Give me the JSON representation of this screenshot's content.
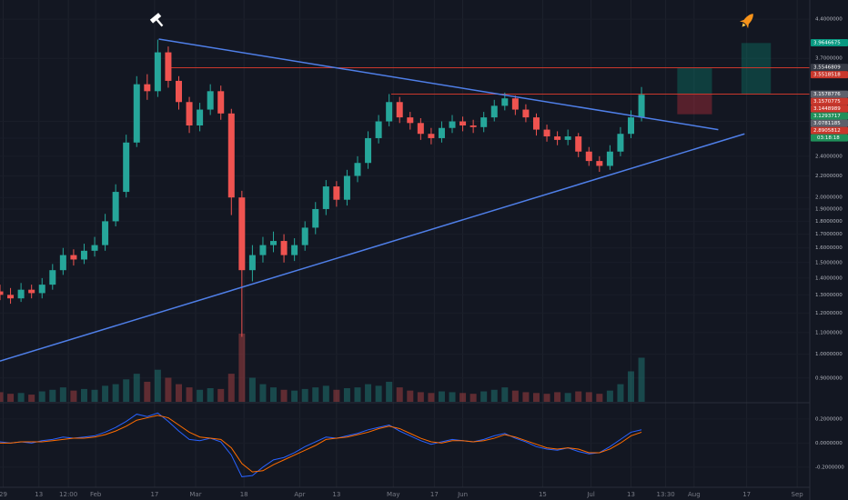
{
  "chart_data": {
    "type": "candlestick",
    "log_scale": true,
    "grid": true,
    "up_color": "#26a69a",
    "down_color": "#ef5350",
    "xlim": [
      0,
      77
    ],
    "ylim": [
      0.81,
      4.79
    ],
    "xticks": [
      {
        "value": 0.3,
        "label": "29"
      },
      {
        "value": 3.7,
        "label": "13"
      },
      {
        "value": 6.5,
        "label": "12:00"
      },
      {
        "value": 9.1,
        "label": "Feb"
      },
      {
        "value": 14.7,
        "label": "17"
      },
      {
        "value": 18.6,
        "label": "Mar"
      },
      {
        "value": 23.2,
        "label": "18"
      },
      {
        "value": 28.5,
        "label": "Apr"
      },
      {
        "value": 32,
        "label": "13"
      },
      {
        "value": 37.4,
        "label": "May"
      },
      {
        "value": 41.3,
        "label": "17"
      },
      {
        "value": 44,
        "label": "Jun"
      },
      {
        "value": 51.6,
        "label": "15"
      },
      {
        "value": 56.2,
        "label": "Jul"
      },
      {
        "value": 60,
        "label": "13"
      },
      {
        "value": 63.3,
        "label": "13:30"
      },
      {
        "value": 66,
        "label": "Aug"
      },
      {
        "value": 71,
        "label": "17"
      },
      {
        "value": 75.8,
        "label": "Sep"
      }
    ],
    "yticks": [
      {
        "value": 4.4,
        "label": "4.4000000"
      },
      {
        "value": 3.7,
        "label": "3.7000000"
      },
      {
        "value": 2.8,
        "label": "2.8000000"
      },
      {
        "value": 2.6,
        "label": "2.6000000"
      },
      {
        "value": 2.4,
        "label": "2.4000000"
      },
      {
        "value": 2.2,
        "label": "2.2000000"
      },
      {
        "value": 2.0,
        "label": "2.0000000"
      },
      {
        "value": 1.9,
        "label": "1.9000000"
      },
      {
        "value": 1.8,
        "label": "1.8000000"
      },
      {
        "value": 1.7,
        "label": "1.7000000"
      },
      {
        "value": 1.6,
        "label": "1.6000000"
      },
      {
        "value": 1.5,
        "label": "1.5000000"
      },
      {
        "value": 1.4,
        "label": "1.4000000"
      },
      {
        "value": 1.3,
        "label": "1.3000000"
      },
      {
        "value": 1.2,
        "label": "1.2000000"
      },
      {
        "value": 1.1,
        "label": "1.1000000"
      },
      {
        "value": 1.0,
        "label": "1.0000000"
      },
      {
        "value": 0.9,
        "label": "0.9000000"
      }
    ],
    "open": [
      1.32,
      1.3,
      1.28,
      1.33,
      1.31,
      1.36,
      1.45,
      1.55,
      1.52,
      1.58,
      1.62,
      1.8,
      2.05,
      2.55,
      3.3,
      3.2,
      3.8,
      3.35,
      3.05,
      2.75,
      2.95,
      3.2,
      2.9,
      2.0,
      1.45,
      1.55,
      1.62,
      1.65,
      1.55,
      1.62,
      1.75,
      1.9,
      2.1,
      1.98,
      2.2,
      2.33,
      2.6,
      2.8,
      3.05,
      2.85,
      2.78,
      2.65,
      2.6,
      2.72,
      2.8,
      2.75,
      2.73,
      2.85,
      3.0,
      3.1,
      2.95,
      2.85,
      2.7,
      2.62,
      2.58,
      2.62,
      2.45,
      2.35,
      2.3,
      2.45,
      2.65,
      2.85
    ],
    "high": [
      1.36,
      1.34,
      1.37,
      1.36,
      1.4,
      1.49,
      1.6,
      1.59,
      1.63,
      1.68,
      1.86,
      2.12,
      2.64,
      3.42,
      3.45,
      4.02,
      3.9,
      3.42,
      3.12,
      3.04,
      3.3,
      3.28,
      2.96,
      2.06,
      1.62,
      1.68,
      1.72,
      1.7,
      1.67,
      1.8,
      1.96,
      2.16,
      2.15,
      2.26,
      2.4,
      2.68,
      2.88,
      3.16,
      3.12,
      2.92,
      2.84,
      2.72,
      2.8,
      2.88,
      2.86,
      2.82,
      2.92,
      3.08,
      3.18,
      3.14,
      3.02,
      2.9,
      2.76,
      2.68,
      2.7,
      2.66,
      2.5,
      2.4,
      2.52,
      2.73,
      2.94,
      3.26
    ],
    "low": [
      1.27,
      1.25,
      1.26,
      1.28,
      1.28,
      1.33,
      1.42,
      1.48,
      1.49,
      1.54,
      1.58,
      1.76,
      2.0,
      2.5,
      3.08,
      3.12,
      3.25,
      2.95,
      2.66,
      2.68,
      2.88,
      2.82,
      1.85,
      1.08,
      1.38,
      1.5,
      1.57,
      1.5,
      1.51,
      1.58,
      1.7,
      1.85,
      1.92,
      1.93,
      2.14,
      2.27,
      2.54,
      2.74,
      2.78,
      2.7,
      2.58,
      2.53,
      2.55,
      2.66,
      2.68,
      2.66,
      2.67,
      2.8,
      2.94,
      2.88,
      2.79,
      2.63,
      2.56,
      2.52,
      2.52,
      2.39,
      2.3,
      2.24,
      2.26,
      2.4,
      2.6,
      2.8
    ],
    "close": [
      1.3,
      1.28,
      1.33,
      1.31,
      1.36,
      1.45,
      1.55,
      1.52,
      1.58,
      1.62,
      1.8,
      2.05,
      2.55,
      3.3,
      3.2,
      3.8,
      3.35,
      3.05,
      2.75,
      2.95,
      3.2,
      2.9,
      2.0,
      1.45,
      1.55,
      1.62,
      1.65,
      1.55,
      1.62,
      1.75,
      1.9,
      2.1,
      1.98,
      2.2,
      2.33,
      2.6,
      2.8,
      3.05,
      2.85,
      2.78,
      2.65,
      2.6,
      2.72,
      2.8,
      2.75,
      2.73,
      2.85,
      3.0,
      3.1,
      2.95,
      2.85,
      2.7,
      2.62,
      2.58,
      2.62,
      2.45,
      2.35,
      2.3,
      2.45,
      2.65,
      2.85,
      3.15
    ],
    "volume": [
      12,
      10,
      11,
      9,
      13,
      15,
      18,
      14,
      16,
      15,
      20,
      22,
      28,
      35,
      25,
      40,
      30,
      22,
      18,
      15,
      17,
      16,
      35,
      85,
      30,
      22,
      18,
      15,
      14,
      16,
      18,
      20,
      15,
      17,
      18,
      22,
      20,
      25,
      18,
      14,
      12,
      11,
      13,
      12,
      11,
      10,
      13,
      15,
      18,
      14,
      12,
      11,
      10,
      12,
      11,
      13,
      12,
      10,
      14,
      22,
      38,
      55
    ],
    "macd": {
      "ylim": [
        -0.36,
        0.32
      ],
      "yticks": [
        {
          "value": 0.2,
          "label": "0.2000000"
        },
        {
          "value": 0,
          "label": "0.0000000"
        },
        {
          "value": -0.2,
          "label": "-0.2000000"
        }
      ],
      "series": [
        {
          "color": "#2962ff",
          "values": [
            0.01,
            0.0,
            0.01,
            0.0,
            0.02,
            0.03,
            0.05,
            0.04,
            0.05,
            0.06,
            0.09,
            0.13,
            0.18,
            0.24,
            0.22,
            0.25,
            0.18,
            0.1,
            0.03,
            0.02,
            0.04,
            0.01,
            -0.1,
            -0.28,
            -0.27,
            -0.2,
            -0.14,
            -0.12,
            -0.08,
            -0.03,
            0.01,
            0.05,
            0.04,
            0.06,
            0.08,
            0.11,
            0.13,
            0.15,
            0.1,
            0.06,
            0.02,
            -0.01,
            0.01,
            0.03,
            0.02,
            0.01,
            0.03,
            0.06,
            0.08,
            0.04,
            0.01,
            -0.03,
            -0.05,
            -0.06,
            -0.04,
            -0.07,
            -0.09,
            -0.08,
            -0.03,
            0.03,
            0.09,
            0.11
          ]
        },
        {
          "color": "#ff6d00",
          "values": [
            0.0,
            0.0,
            0.01,
            0.01,
            0.01,
            0.02,
            0.03,
            0.04,
            0.04,
            0.05,
            0.07,
            0.1,
            0.14,
            0.19,
            0.21,
            0.23,
            0.21,
            0.15,
            0.09,
            0.05,
            0.04,
            0.03,
            -0.04,
            -0.17,
            -0.24,
            -0.23,
            -0.18,
            -0.14,
            -0.1,
            -0.06,
            -0.02,
            0.03,
            0.04,
            0.05,
            0.07,
            0.09,
            0.12,
            0.14,
            0.12,
            0.08,
            0.04,
            0.01,
            0.0,
            0.02,
            0.02,
            0.01,
            0.02,
            0.04,
            0.07,
            0.05,
            0.02,
            -0.01,
            -0.04,
            -0.05,
            -0.04,
            -0.05,
            -0.08,
            -0.08,
            -0.05,
            0.0,
            0.06,
            0.09
          ]
        }
      ]
    },
    "trendlines": [
      {
        "color": "#4f7fe8",
        "x": [
          15.1,
          68.3
        ],
        "y": [
          4.03,
          2.7
        ]
      },
      {
        "color": "#4f7fe8",
        "x": [
          0,
          70.8
        ],
        "y": [
          0.97,
          2.65
        ]
      }
    ],
    "hlines": [
      {
        "color": "#c9372c",
        "x": [
          16,
          77
        ],
        "y": 3.55
      },
      {
        "color": "#c9372c",
        "x": [
          37.2,
          77
        ],
        "y": 3.16
      }
    ],
    "positions": [
      {
        "x": [
          64.4,
          67.7
        ],
        "entry": 3.16,
        "target": 3.55,
        "stop": 2.89
      },
      {
        "x": [
          70.5,
          73.3
        ],
        "entry": 3.16,
        "target": 3.96
      }
    ],
    "price_tags": [
      {
        "value": 3.9646675,
        "label": "3.9646675",
        "color": "#089981"
      },
      {
        "value": 3.5546809,
        "label": "3.5546809",
        "color": "#363a45"
      },
      {
        "value": 3.5518518,
        "label": "3.5518518",
        "color": "#c9372c"
      },
      {
        "value": 3.1578776,
        "label": "3.1578776",
        "color": "#5d606b"
      },
      {
        "value": 3.1570775,
        "label": "3.1570775",
        "color": "#c9372c"
      },
      {
        "value": 3.1448989,
        "label": "3.1448989",
        "color": "#c9372c"
      },
      {
        "value": 3.1293717,
        "label": "3.1293717",
        "color": "#1f8f5a"
      },
      {
        "value": 3.0781185,
        "label": "3.0781185",
        "color": "#5d606b"
      },
      {
        "value": 2.8905812,
        "label": "2.8905812",
        "color": "#c9372c"
      }
    ],
    "countdown": "03:18:18"
  }
}
